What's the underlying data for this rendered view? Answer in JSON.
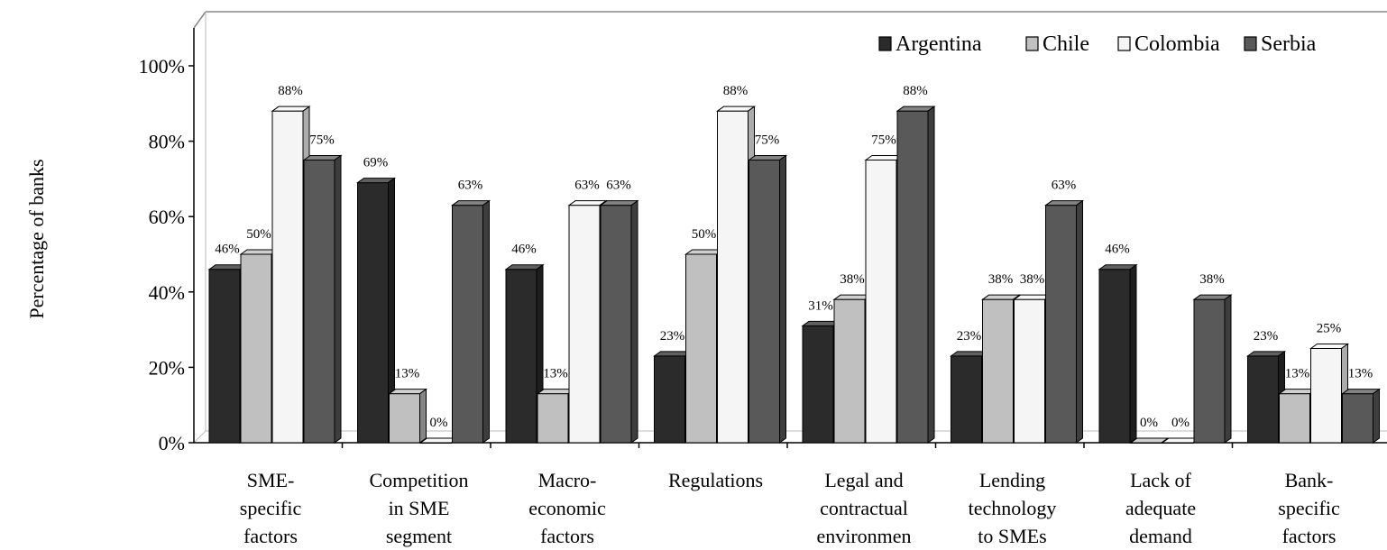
{
  "chart_data": {
    "type": "bar",
    "ylabel": "Percentage of banks",
    "xlabel": "",
    "ylim": [
      0,
      100
    ],
    "y_ticks": [
      "0%",
      "20%",
      "40%",
      "60%",
      "80%",
      "100%"
    ],
    "y_tick_values": [
      0,
      20,
      40,
      60,
      80,
      100
    ],
    "grid": false,
    "legend_position": "top-right",
    "categories": [
      [
        "SME-",
        "specific",
        "factors"
      ],
      [
        "Competition",
        "in SME",
        "segment"
      ],
      [
        "Macro-",
        "economic",
        "factors"
      ],
      [
        "Regulations"
      ],
      [
        "Legal and",
        "contractual",
        "environmen"
      ],
      [
        "Lending",
        "technology",
        "to SMEs"
      ],
      [
        "Lack of",
        "adequate",
        "demand"
      ],
      [
        "Bank-",
        "specific",
        "factors"
      ]
    ],
    "series": [
      {
        "name": "Argentina",
        "color": "#2b2b2b",
        "values": [
          46,
          69,
          46,
          23,
          31,
          23,
          46,
          23
        ],
        "labels": [
          "46%",
          "69%",
          "46%",
          "23%",
          "31%",
          "23%",
          "46%",
          "23%"
        ]
      },
      {
        "name": "Chile",
        "color": "#c0c0c0",
        "values": [
          50,
          13,
          13,
          50,
          38,
          38,
          0,
          13
        ],
        "labels": [
          "50%",
          "13%",
          "13%",
          "50%",
          "38%",
          "38%",
          "0%",
          "13%"
        ]
      },
      {
        "name": "Colombia",
        "color": "#f5f5f5",
        "values": [
          88,
          0,
          63,
          88,
          75,
          38,
          0,
          25
        ],
        "labels": [
          "88%",
          "0%",
          "63%",
          "88%",
          "75%",
          "38%",
          "0%",
          "25%"
        ]
      },
      {
        "name": "Serbia",
        "color": "#595959",
        "values": [
          75,
          63,
          63,
          75,
          88,
          63,
          38,
          13
        ],
        "labels": [
          "75%",
          "63%",
          "63%",
          "75%",
          "88%",
          "63%",
          "38%",
          "13%"
        ]
      }
    ]
  }
}
